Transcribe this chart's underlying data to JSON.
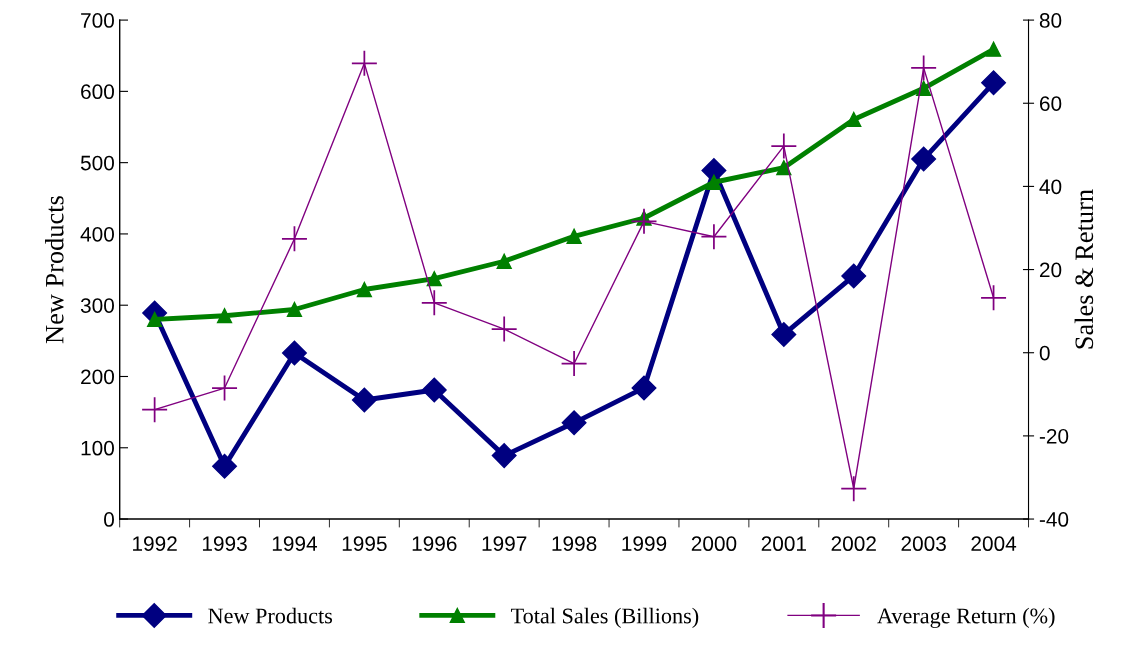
{
  "chart_data": {
    "type": "line",
    "ylabel": "New Products",
    "y2label": "Sales & Return",
    "categories": [
      "1992",
      "1993",
      "1994",
      "1995",
      "1996",
      "1997",
      "1998",
      "1999",
      "2000",
      "2001",
      "2002",
      "2003",
      "2004"
    ],
    "series": [
      {
        "name": "New Products",
        "color": "#000080",
        "marker": "diamond",
        "values": [
          289,
          74,
          233,
          167,
          181,
          89,
          135,
          184,
          489,
          259,
          341,
          505,
          612
        ]
      },
      {
        "name": "Total Sales (Billions)",
        "color": "#008000",
        "marker": "triangle",
        "axis": "y2",
        "values": [
          8.0,
          8.9,
          10.4,
          15.2,
          17.8,
          22.0,
          28.0,
          32.4,
          41.0,
          44.5,
          56.1,
          63.6,
          73.0
        ]
      },
      {
        "name": "Average Return (%)",
        "color": "#800080",
        "marker": "cross",
        "axis": "y2",
        "values": [
          -13.7,
          -8.5,
          27.4,
          69.6,
          12.0,
          5.7,
          -2.6,
          31.6,
          27.9,
          49.7,
          -32.7,
          68.5,
          13.2
        ]
      }
    ],
    "ylim": [
      0,
      700
    ],
    "yticks": [
      0,
      100,
      200,
      300,
      400,
      500,
      600,
      700
    ],
    "y2lim": [
      -40,
      80
    ],
    "y2ticks": [
      -40,
      -20,
      0,
      20,
      40,
      60,
      80
    ],
    "grid": false,
    "legend": "bottom",
    "line_style": "solid"
  }
}
